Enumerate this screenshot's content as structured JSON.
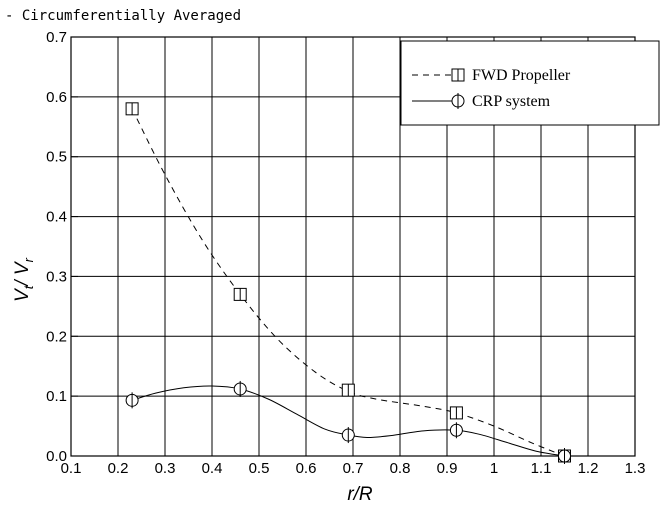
{
  "chart_data": {
    "type": "line",
    "title": "- Circumferentially Averaged",
    "xlabel": "r/R",
    "ylabel": {
      "main": "V",
      "sub1": "t",
      "sep": "/ V",
      "sub2": "r"
    },
    "xlim": [
      0.1,
      1.3
    ],
    "ylim": [
      0.0,
      0.7
    ],
    "xticks": [
      0.1,
      0.2,
      0.3,
      0.4,
      0.5,
      0.6,
      0.7,
      0.8,
      0.9,
      1.0,
      1.1,
      1.2,
      1.3
    ],
    "xtick_labels": [
      "0.1",
      "0.2",
      "0.3",
      "0.4",
      "0.5",
      "0.6",
      "0.7",
      "0.8",
      "0.9",
      "1",
      "1.1",
      "1.2",
      "1.3"
    ],
    "yticks": [
      0.0,
      0.1,
      0.2,
      0.3,
      0.4,
      0.5,
      0.6,
      0.7
    ],
    "ytick_labels": [
      "0.0",
      "0.1",
      "0.2",
      "0.3",
      "0.4",
      "0.5",
      "0.6",
      "0.7"
    ],
    "grid": true,
    "legend_position": "top-right",
    "series": [
      {
        "name": "FWD Propeller",
        "marker": "square",
        "line": "dashed",
        "x": [
          0.23,
          0.46,
          0.69,
          0.92,
          1.15
        ],
        "y": [
          0.58,
          0.27,
          0.11,
          0.072,
          0.0
        ],
        "curve_x": [
          0.23,
          0.3,
          0.38,
          0.46,
          0.54,
          0.62,
          0.69,
          0.75,
          0.85,
          0.92,
          1.0,
          1.08,
          1.15
        ],
        "curve_y": [
          0.58,
          0.47,
          0.36,
          0.27,
          0.195,
          0.14,
          0.108,
          0.095,
          0.083,
          0.072,
          0.05,
          0.022,
          0.0
        ]
      },
      {
        "name": "CRP system",
        "marker": "circle-cross",
        "line": "solid",
        "x": [
          0.23,
          0.46,
          0.69,
          0.92,
          1.15
        ],
        "y": [
          0.093,
          0.112,
          0.035,
          0.043,
          0.0
        ],
        "curve_x": [
          0.23,
          0.28,
          0.34,
          0.4,
          0.46,
          0.52,
          0.58,
          0.64,
          0.69,
          0.73,
          0.78,
          0.85,
          0.92,
          0.97,
          1.03,
          1.09,
          1.15
        ],
        "curve_y": [
          0.093,
          0.105,
          0.114,
          0.117,
          0.112,
          0.095,
          0.07,
          0.045,
          0.035,
          0.031,
          0.034,
          0.042,
          0.043,
          0.036,
          0.022,
          0.008,
          0.0
        ]
      }
    ]
  }
}
